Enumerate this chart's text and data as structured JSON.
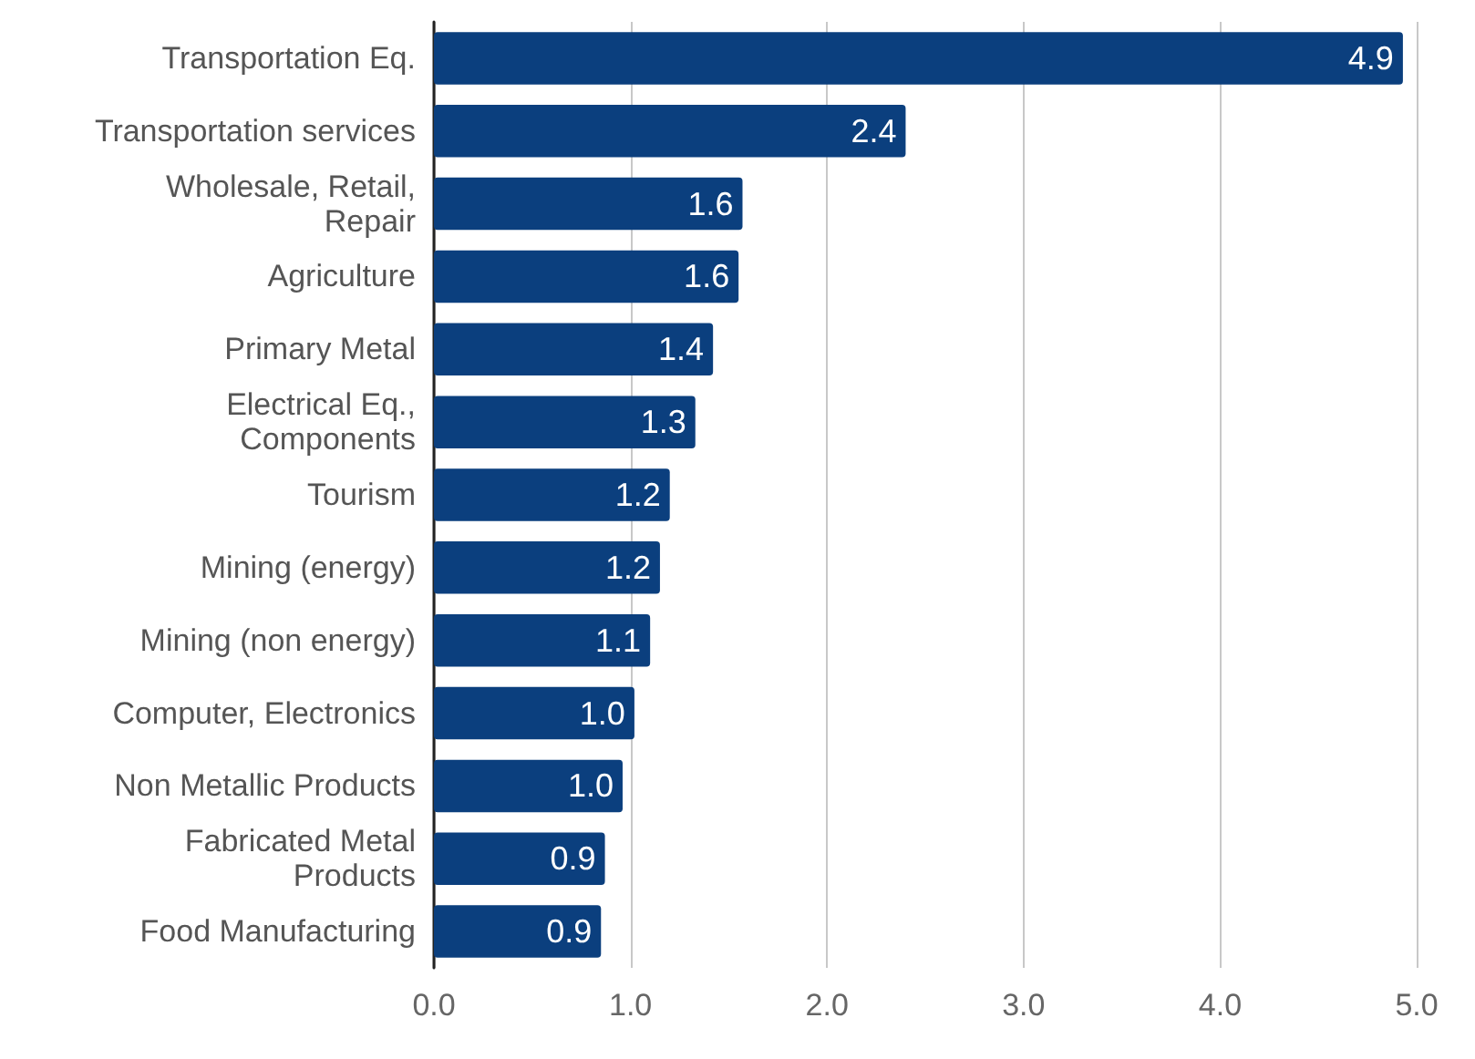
{
  "chart_data": {
    "type": "bar",
    "orientation": "horizontal",
    "categories": [
      "Transportation Eq.",
      "Transportation services",
      "Wholesale, Retail, Repair",
      "Agriculture",
      "Primary Metal",
      "Electrical Eq., Components",
      "Tourism",
      "Mining (energy)",
      "Mining (non energy)",
      "Computer, Electronics",
      "Non Metallic Products",
      "Fabricated Metal Products",
      "Food Manufacturing"
    ],
    "values": [
      4.93,
      2.4,
      1.57,
      1.55,
      1.42,
      1.33,
      1.2,
      1.15,
      1.1,
      1.02,
      0.96,
      0.87,
      0.85
    ],
    "value_labels": [
      "4.9",
      "2.4",
      "1.6",
      "1.6",
      "1.4",
      "1.3",
      "1.2",
      "1.2",
      "1.1",
      "1.0",
      "1.0",
      "0.9",
      "0.9"
    ],
    "color": "#0b3f7e",
    "xlim": [
      0,
      5
    ],
    "xticks": [
      {
        "value": 0,
        "label": "0.0"
      },
      {
        "value": 1,
        "label": "1.0"
      },
      {
        "value": 2,
        "label": "2.0"
      },
      {
        "value": 3,
        "label": "3.0"
      },
      {
        "value": 4,
        "label": "4.0"
      },
      {
        "value": 5,
        "label": "5.0"
      }
    ],
    "grid": "x"
  }
}
